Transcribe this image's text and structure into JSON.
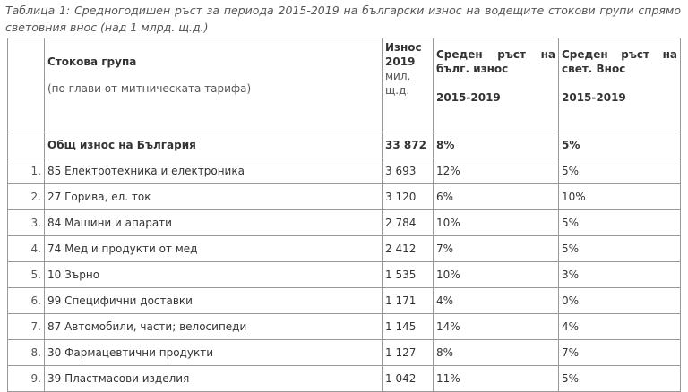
{
  "caption": "Таблица 1: Средногодишен ръст за периода 2015-2019 на български износ на водещите стокови групи спрямо световния внос (над 1 млрд. щ.д.)",
  "header": {
    "group": "Стокова група",
    "group_sub": "(по глави от митническата тарифа)",
    "export_a": "Износ",
    "export_b": "2019",
    "export_unit_a": "мил.",
    "export_unit_b": "щ.д.",
    "bg_a": "Среден ръст на",
    "bg_b": "бълг. износ",
    "bg_period": "2015-2019",
    "world_a": "Среден ръст на",
    "world_b": "свет. Внос",
    "world_period": "2015-2019"
  },
  "total": {
    "label": "Общ износ на България",
    "export": "33 872",
    "bg": "8%",
    "world": "5%"
  },
  "rows": [
    {
      "n": "1.",
      "group": "85 Електротехника и електроника",
      "export": "3 693",
      "bg": "12%",
      "world": "5%"
    },
    {
      "n": "2.",
      "group": "27 Горива, ел. ток",
      "export": "3 120",
      "bg": "6%",
      "world": "10%"
    },
    {
      "n": "3.",
      "group": "84 Машини и апарати",
      "export": "2 784",
      "bg": "10%",
      "world": "5%"
    },
    {
      "n": "4.",
      "group": "74 Мед и продукти от мед",
      "export": "2 412",
      "bg": "7%",
      "world": "5%"
    },
    {
      "n": "5.",
      "group": "10 Зърно",
      "export": "1 535",
      "bg": "10%",
      "world": "3%"
    },
    {
      "n": "6.",
      "group": "99 Специфични доставки",
      "export": "1 171",
      "bg": "4%",
      "world": "0%"
    },
    {
      "n": "7.",
      "group": "87 Автомобили, части; велосипеди",
      "export": "1 145",
      "bg": "14%",
      "world": "4%"
    },
    {
      "n": "8.",
      "group": "30 Фармацевтични продукти",
      "export": "1 127",
      "bg": "8%",
      "world": "7%"
    },
    {
      "n": "9.",
      "group": "39 Пластмасови изделия",
      "export": "1 042",
      "bg": "11%",
      "world": "5%"
    }
  ]
}
